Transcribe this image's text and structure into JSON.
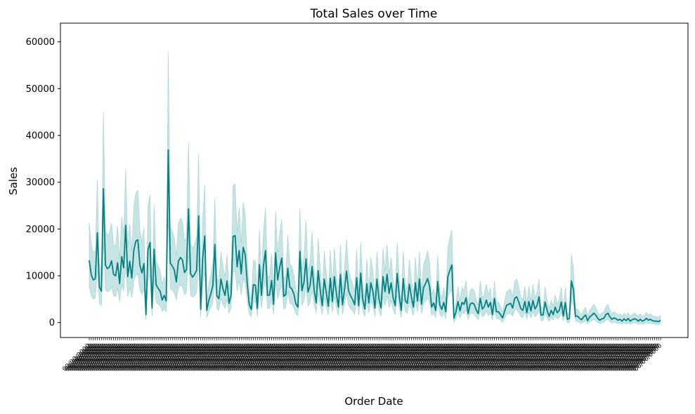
{
  "chart_data": {
    "type": "line",
    "title": "Total Sales over Time",
    "xlabel": "Order Date",
    "ylabel": "Sales",
    "ylim": [
      -3200,
      64000
    ],
    "yticks": [
      0,
      10000,
      20000,
      30000,
      40000,
      50000,
      60000
    ],
    "grid": false,
    "legend": "none",
    "line_color": "#008080",
    "band_color": "#5fb3b3",
    "x_tick_labels_note": "dense overlapping rotated date labels (illegible)",
    "series": [
      {
        "values": [
          13300,
          10200,
          9100,
          9400,
          19200,
          7600,
          6700,
          28600,
          12300,
          11500,
          11900,
          13200,
          10300,
          10000,
          12800,
          8300,
          14100,
          11700,
          20800,
          9800,
          13100,
          9500,
          15500,
          17400,
          17700,
          12300,
          10600,
          12600,
          1700,
          15600,
          17100,
          3100,
          15700,
          8100,
          7300,
          6700,
          4800,
          5800,
          4600,
          36900,
          12700,
          12100,
          11200,
          8700,
          13100,
          13900,
          13400,
          10700,
          11300,
          24300,
          10500,
          9700,
          10300,
          11200,
          22800,
          2800,
          13700,
          18500,
          2600,
          4700,
          6100,
          7900,
          16700,
          5700,
          5100,
          9300,
          7200,
          5800,
          8900,
          4100,
          5900,
          18400,
          18600,
          11900,
          15400,
          10400,
          16100,
          14500,
          8300,
          3800,
          2800,
          8100,
          8000,
          3000,
          12400,
          5800,
          12100,
          15400,
          5800,
          5900,
          9000,
          3900,
          14900,
          9100,
          11800,
          13800,
          5600,
          6000,
          11600,
          7600,
          7200,
          6100,
          4000,
          3300,
          15200,
          6800,
          8700,
          13600,
          6500,
          7900,
          12000,
          7000,
          4200,
          11100,
          7000,
          3600,
          9300,
          6400,
          3500,
          9500,
          4500,
          9800,
          6200,
          3300,
          10300,
          3800,
          7100,
          11000,
          6800,
          5700,
          4900,
          3800,
          9600,
          3600,
          10600,
          5000,
          2900,
          8300,
          4200,
          8500,
          6600,
          3100,
          9300,
          5100,
          3100,
          9800,
          6600,
          10300,
          6200,
          8500,
          5300,
          3600,
          10500,
          5800,
          2600,
          9400,
          4700,
          4100,
          8200,
          5500,
          3300,
          8500,
          4600,
          9300,
          3900,
          7500,
          8300,
          9400,
          7700,
          3300,
          4200,
          2600,
          8800,
          3800,
          2800,
          4300,
          2300,
          9800,
          11200,
          12300,
          900,
          2300,
          4500,
          2500,
          4300,
          3900,
          5300,
          1900,
          3900,
          4200,
          3900,
          2700,
          1900,
          5200,
          2900,
          3400,
          4800,
          3300,
          4300,
          1700,
          5200,
          2300,
          2300,
          1700,
          1000,
          2400,
          3700,
          3900,
          4100,
          3100,
          5200,
          5500,
          4400,
          3000,
          2600,
          4500,
          2100,
          4500,
          2500,
          4700,
          2900,
          3600,
          5500,
          1600,
          1600,
          4400,
          2600,
          1300,
          2600,
          1700,
          3300,
          2100,
          2600,
          4400,
          1400,
          4300,
          700,
          900,
          8900,
          7000,
          1300,
          1400,
          900,
          600,
          1200,
          1600,
          400,
          1200,
          1500,
          2000,
          1600,
          900,
          500,
          800,
          900,
          1700,
          2000,
          1200,
          700,
          1000,
          800,
          500,
          700,
          300,
          800,
          400,
          900,
          300,
          600,
          800,
          700,
          300,
          700,
          300,
          500,
          900,
          500,
          700,
          400,
          300,
          300,
          200,
          500
        ]
      }
    ],
    "notes": "values approximate (read from chart); x axis has one tick per point, labels illegible"
  }
}
